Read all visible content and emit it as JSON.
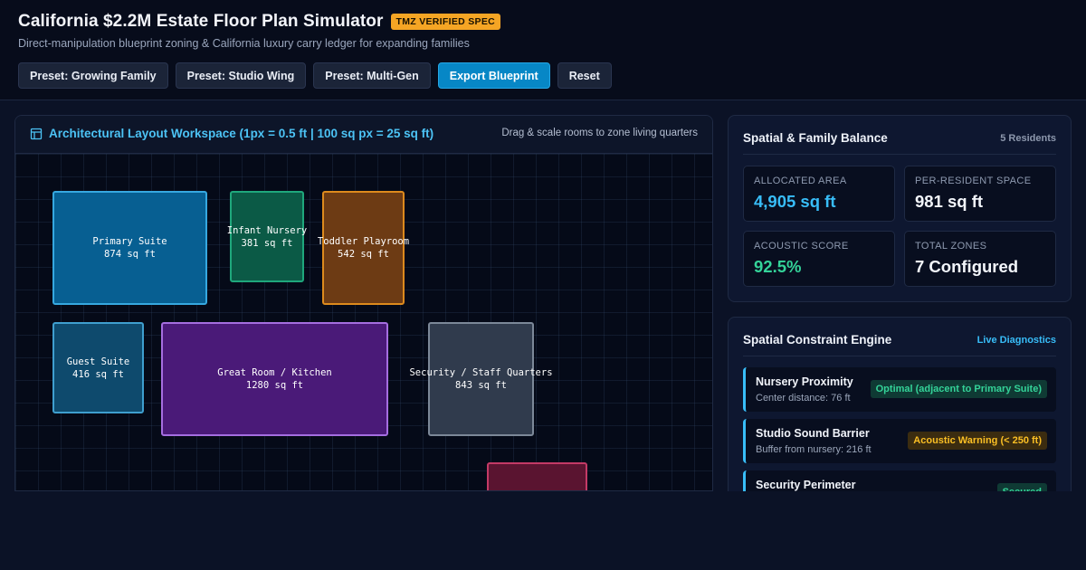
{
  "header": {
    "title": "California $2.2M Estate Floor Plan Simulator",
    "badge": "TMZ VERIFIED SPEC",
    "subtitle": "Direct-manipulation blueprint zoning & California luxury carry ledger for expanding families",
    "buttons": {
      "preset_growing_family": "Preset: Growing Family",
      "preset_studio_wing": "Preset: Studio Wing",
      "preset_multi_gen": "Preset: Multi-Gen",
      "export_blueprint": "Export Blueprint",
      "reset": "Reset"
    }
  },
  "workspace": {
    "title": "Architectural Layout Workspace (1px = 0.5 ft | 100 sq px = 25 sq ft)",
    "hint": "Drag & scale rooms to zone living quarters",
    "rooms": {
      "primary_suite": {
        "name": "Primary Suite",
        "area": "874 sq ft"
      },
      "infant_nursery": {
        "name": "Infant Nursery",
        "area": "381 sq ft"
      },
      "toddler_playroom": {
        "name": "Toddler Playroom",
        "area": "542 sq ft"
      },
      "guest_suite": {
        "name": "Guest Suite",
        "area": "416 sq ft"
      },
      "great_room": {
        "name": "Great Room / Kitchen",
        "area": "1280 sq ft"
      },
      "security_quarters": {
        "name": "Security / Staff Quarters",
        "area": "843 sq ft"
      }
    }
  },
  "balance": {
    "title": "Spatial & Family Balance",
    "residents": "5 Residents",
    "stats": {
      "allocated_area": {
        "label": "ALLOCATED AREA",
        "value": "4,905 sq ft"
      },
      "per_resident": {
        "label": "PER-RESIDENT SPACE",
        "value": "981 sq ft"
      },
      "acoustic_score": {
        "label": "ACOUSTIC SCORE",
        "value": "92.5%"
      },
      "total_zones": {
        "label": "TOTAL ZONES",
        "value": "7 Configured"
      }
    }
  },
  "constraints": {
    "title": "Spatial Constraint Engine",
    "live": "Live Diagnostics",
    "items": {
      "nursery": {
        "title": "Nursery Proximity",
        "detail": "Center distance: 76 ft",
        "status": "Optimal (adjacent to Primary Suite)"
      },
      "studio": {
        "title": "Studio Sound Barrier",
        "detail": "Buffer from nursery: 216 ft",
        "status": "Acoustic Warning (< 250 ft)"
      },
      "security": {
        "title": "Security Perimeter",
        "status": "Secured"
      }
    }
  },
  "colors": {
    "accent": "#0787c6",
    "tmz_badge": "#f5a524",
    "area_value": "#38bdf8",
    "acoustic_value": "#34d399",
    "warning": "#fbbf24"
  }
}
